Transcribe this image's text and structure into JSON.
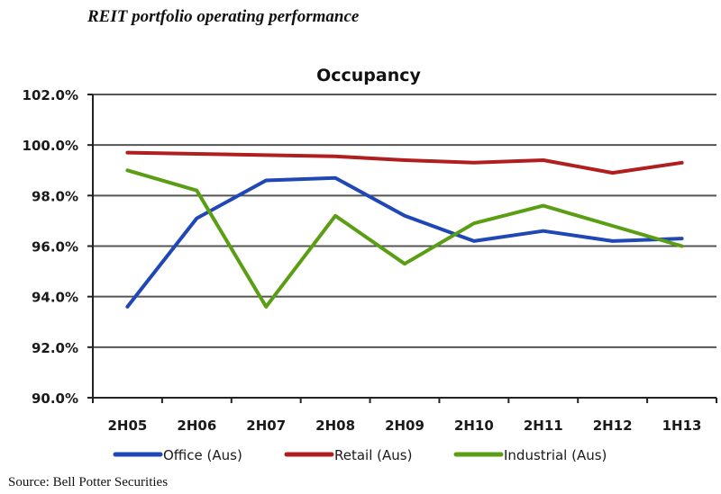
{
  "header": {
    "title": "REIT portfolio operating performance"
  },
  "source": "Source:  Bell Potter Securities",
  "chart_data": {
    "type": "line",
    "title": "Occupancy",
    "xlabel": "",
    "ylabel": "",
    "categories": [
      "2H05",
      "2H06",
      "2H07",
      "2H08",
      "2H09",
      "2H10",
      "2H11",
      "2H12",
      "1H13"
    ],
    "ylim": [
      90,
      102
    ],
    "yticks": [
      90,
      92,
      94,
      96,
      98,
      100,
      102
    ],
    "ytick_labels": [
      "90.0%",
      "92.0%",
      "94.0%",
      "96.0%",
      "98.0%",
      "100.0%",
      "102.0%"
    ],
    "grid": true,
    "legend_position": "bottom",
    "series": [
      {
        "name": "Office (Aus)",
        "color": "#1f47b5",
        "values": [
          93.6,
          97.1,
          98.6,
          98.7,
          97.2,
          96.2,
          96.6,
          96.2,
          96.3
        ]
      },
      {
        "name": "Retail (Aus)",
        "color": "#b01e1e",
        "values": [
          99.7,
          99.65,
          99.6,
          99.55,
          99.4,
          99.3,
          99.4,
          98.9,
          99.3
        ]
      },
      {
        "name": "Industrial (Aus)",
        "color": "#5a9e14",
        "values": [
          99.0,
          98.2,
          93.6,
          97.2,
          95.3,
          96.9,
          97.6,
          96.8,
          96.0
        ]
      }
    ]
  }
}
